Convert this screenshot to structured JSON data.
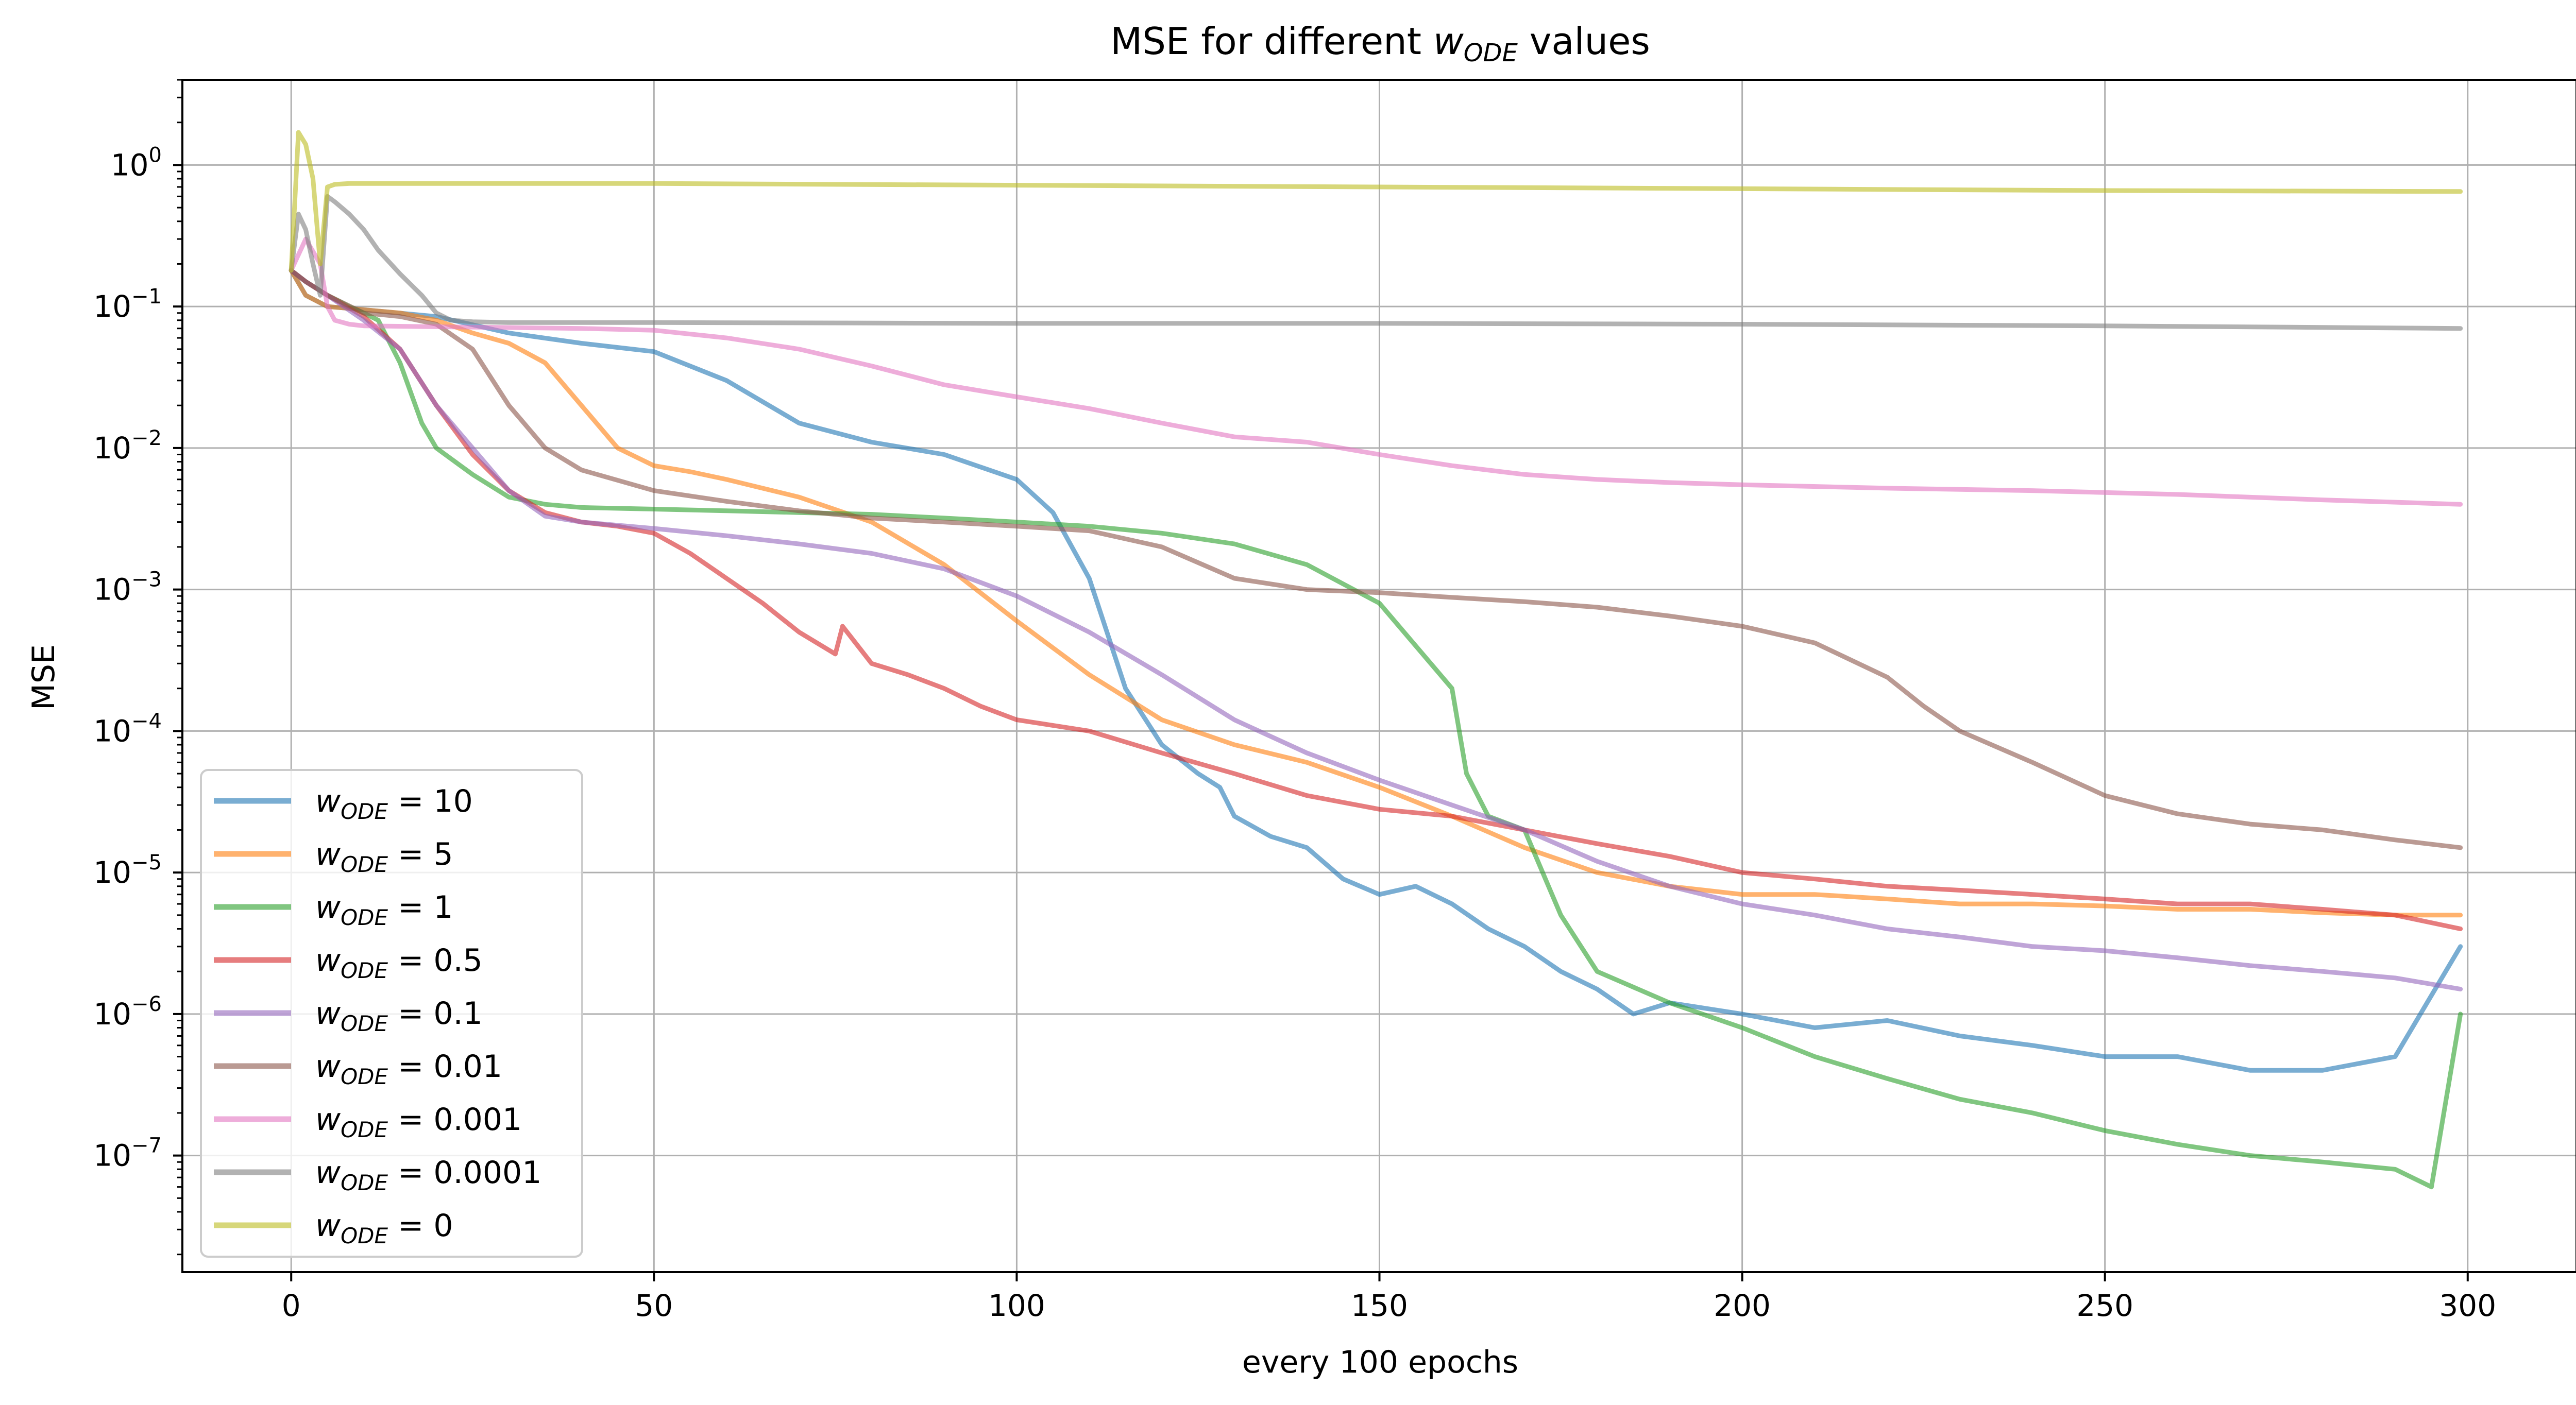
{
  "chart_data": {
    "type": "line",
    "title": "MSE for different w_ODE values",
    "title_parts": {
      "prefix": "MSE for different ",
      "var": "w",
      "sub": "ODE",
      "suffix": " values"
    },
    "xlabel": "every 100 epochs",
    "ylabel": "MSE",
    "xlim": [
      -15,
      315
    ],
    "ylim": [
      1.5e-08,
      4
    ],
    "yscale": "log",
    "grid": true,
    "legend_position": "lower-left",
    "x_ticks": [
      0,
      50,
      100,
      150,
      200,
      250,
      300
    ],
    "x_tick_labels": [
      "0",
      "50",
      "100",
      "150",
      "200",
      "250",
      "300"
    ],
    "y_ticks": [
      1,
      0.1,
      0.01,
      0.001,
      0.0001,
      1e-05,
      1e-06,
      1e-07
    ],
    "y_tick_labels": [
      {
        "base": "10",
        "exp": "0"
      },
      {
        "base": "10",
        "exp": "−1"
      },
      {
        "base": "10",
        "exp": "−2"
      },
      {
        "base": "10",
        "exp": "−3"
      },
      {
        "base": "10",
        "exp": "−4"
      },
      {
        "base": "10",
        "exp": "−5"
      },
      {
        "base": "10",
        "exp": "−6"
      },
      {
        "base": "10",
        "exp": "−7"
      }
    ],
    "series": [
      {
        "name": "w_ODE = 10",
        "legend_value": "10",
        "color": "#1f77b4",
        "x": [
          0,
          2,
          5,
          10,
          20,
          30,
          40,
          50,
          60,
          70,
          80,
          90,
          100,
          105,
          110,
          115,
          120,
          125,
          128,
          130,
          135,
          140,
          145,
          150,
          155,
          160,
          165,
          170,
          175,
          180,
          185,
          190,
          200,
          210,
          220,
          230,
          240,
          250,
          260,
          270,
          280,
          290,
          299
        ],
        "y": [
          0.18,
          0.12,
          0.1,
          0.095,
          0.085,
          0.065,
          0.055,
          0.048,
          0.03,
          0.015,
          0.011,
          0.009,
          0.006,
          0.0035,
          0.0012,
          0.0002,
          8e-05,
          5e-05,
          4e-05,
          2.5e-05,
          1.8e-05,
          1.5e-05,
          9e-06,
          7e-06,
          8e-06,
          6e-06,
          4e-06,
          3e-06,
          2e-06,
          1.5e-06,
          1e-06,
          1.2e-06,
          1e-06,
          8e-07,
          9e-07,
          7e-07,
          6e-07,
          5e-07,
          5e-07,
          4e-07,
          4e-07,
          5e-07,
          3e-06
        ]
      },
      {
        "name": "w_ODE = 5",
        "legend_value": "5",
        "color": "#ff7f0e",
        "x": [
          0,
          2,
          5,
          10,
          15,
          20,
          25,
          30,
          35,
          40,
          45,
          50,
          55,
          60,
          70,
          80,
          90,
          100,
          110,
          120,
          130,
          140,
          150,
          160,
          170,
          180,
          190,
          200,
          210,
          220,
          230,
          240,
          250,
          260,
          270,
          280,
          290,
          299
        ],
        "y": [
          0.18,
          0.12,
          0.1,
          0.095,
          0.09,
          0.08,
          0.065,
          0.055,
          0.04,
          0.02,
          0.01,
          0.0075,
          0.0068,
          0.006,
          0.0045,
          0.003,
          0.0015,
          0.0006,
          0.00025,
          0.00012,
          8e-05,
          6e-05,
          4e-05,
          2.5e-05,
          1.5e-05,
          1e-05,
          8e-06,
          7e-06,
          7e-06,
          6.5e-06,
          6e-06,
          6e-06,
          5.8e-06,
          5.5e-06,
          5.5e-06,
          5.2e-06,
          5e-06,
          5e-06
        ]
      },
      {
        "name": "w_ODE = 1",
        "legend_value": "1",
        "color": "#2ca02c",
        "x": [
          0,
          2,
          5,
          8,
          10,
          12,
          15,
          18,
          20,
          25,
          30,
          35,
          40,
          50,
          60,
          70,
          80,
          90,
          100,
          110,
          120,
          130,
          140,
          150,
          155,
          160,
          162,
          165,
          170,
          175,
          180,
          190,
          200,
          210,
          220,
          230,
          240,
          250,
          260,
          270,
          280,
          290,
          295,
          299
        ],
        "y": [
          0.18,
          0.15,
          0.12,
          0.1,
          0.09,
          0.08,
          0.04,
          0.015,
          0.01,
          0.0065,
          0.0045,
          0.004,
          0.0038,
          0.0037,
          0.0036,
          0.0035,
          0.0034,
          0.0032,
          0.003,
          0.0028,
          0.0025,
          0.0021,
          0.0015,
          0.0008,
          0.0004,
          0.0002,
          5e-05,
          2.5e-05,
          2e-05,
          5e-06,
          2e-06,
          1.2e-06,
          8e-07,
          5e-07,
          3.5e-07,
          2.5e-07,
          2e-07,
          1.5e-07,
          1.2e-07,
          1e-07,
          9e-08,
          8e-08,
          6e-08,
          1e-06
        ]
      },
      {
        "name": "w_ODE = 0.5",
        "legend_value": "0.5",
        "color": "#d62728",
        "x": [
          0,
          2,
          5,
          10,
          15,
          20,
          25,
          30,
          35,
          40,
          45,
          50,
          55,
          60,
          65,
          70,
          75,
          76,
          80,
          85,
          90,
          95,
          100,
          110,
          120,
          130,
          140,
          150,
          160,
          170,
          180,
          190,
          200,
          210,
          220,
          230,
          240,
          250,
          260,
          270,
          280,
          290,
          299
        ],
        "y": [
          0.18,
          0.15,
          0.12,
          0.085,
          0.05,
          0.02,
          0.009,
          0.005,
          0.0035,
          0.003,
          0.0028,
          0.0025,
          0.0018,
          0.0012,
          0.0008,
          0.0005,
          0.00035,
          0.00055,
          0.0003,
          0.00025,
          0.0002,
          0.00015,
          0.00012,
          0.0001,
          7e-05,
          5e-05,
          3.5e-05,
          2.8e-05,
          2.5e-05,
          2e-05,
          1.6e-05,
          1.3e-05,
          1e-05,
          9e-06,
          8e-06,
          7.5e-06,
          7e-06,
          6.5e-06,
          6e-06,
          6e-06,
          5.5e-06,
          5e-06,
          4e-06
        ]
      },
      {
        "name": "w_ODE = 0.1",
        "legend_value": "0.1",
        "color": "#9467bd",
        "x": [
          0,
          2,
          5,
          10,
          15,
          20,
          25,
          30,
          35,
          40,
          50,
          60,
          70,
          80,
          90,
          100,
          110,
          120,
          130,
          140,
          150,
          160,
          170,
          180,
          190,
          200,
          210,
          220,
          230,
          240,
          250,
          260,
          270,
          280,
          290,
          299
        ],
        "y": [
          0.18,
          0.15,
          0.12,
          0.08,
          0.05,
          0.02,
          0.01,
          0.005,
          0.0033,
          0.003,
          0.0027,
          0.0024,
          0.0021,
          0.0018,
          0.0014,
          0.0009,
          0.0005,
          0.00025,
          0.00012,
          7e-05,
          4.5e-05,
          3e-05,
          2e-05,
          1.2e-05,
          8e-06,
          6e-06,
          5e-06,
          4e-06,
          3.5e-06,
          3e-06,
          2.8e-06,
          2.5e-06,
          2.2e-06,
          2e-06,
          1.8e-06,
          1.5e-06
        ]
      },
      {
        "name": "w_ODE = 0.01",
        "legend_value": "0.01",
        "color": "#8c564b",
        "x": [
          0,
          2,
          5,
          10,
          15,
          20,
          25,
          30,
          35,
          40,
          50,
          60,
          70,
          80,
          90,
          100,
          110,
          120,
          130,
          140,
          150,
          160,
          170,
          180,
          190,
          200,
          210,
          220,
          225,
          230,
          240,
          250,
          260,
          270,
          280,
          290,
          299
        ],
        "y": [
          0.18,
          0.15,
          0.12,
          0.09,
          0.085,
          0.075,
          0.05,
          0.02,
          0.01,
          0.007,
          0.005,
          0.0042,
          0.0036,
          0.0032,
          0.003,
          0.0028,
          0.0026,
          0.002,
          0.0012,
          0.001,
          0.00095,
          0.00088,
          0.00082,
          0.00075,
          0.00065,
          0.00055,
          0.00042,
          0.00024,
          0.00015,
          0.0001,
          6e-05,
          3.5e-05,
          2.6e-05,
          2.2e-05,
          2e-05,
          1.7e-05,
          1.5e-05
        ]
      },
      {
        "name": "w_ODE = 0.001",
        "legend_value": "0.001",
        "color": "#e377c2",
        "x": [
          0,
          2,
          4,
          5,
          6,
          8,
          10,
          20,
          30,
          40,
          50,
          60,
          70,
          80,
          90,
          100,
          110,
          120,
          130,
          140,
          150,
          160,
          170,
          180,
          190,
          200,
          220,
          240,
          260,
          280,
          299
        ],
        "y": [
          0.18,
          0.3,
          0.2,
          0.1,
          0.08,
          0.075,
          0.073,
          0.072,
          0.071,
          0.07,
          0.068,
          0.06,
          0.05,
          0.038,
          0.028,
          0.023,
          0.019,
          0.015,
          0.012,
          0.011,
          0.009,
          0.0075,
          0.0065,
          0.006,
          0.0057,
          0.0055,
          0.0052,
          0.005,
          0.0047,
          0.0043,
          0.004
        ]
      },
      {
        "name": "w_ODE = 0.0001",
        "legend_value": "0.0001",
        "color": "#7f7f7f",
        "x": [
          0,
          1,
          2,
          3,
          4,
          5,
          6,
          8,
          10,
          12,
          15,
          18,
          20,
          22,
          25,
          30,
          40,
          50,
          100,
          150,
          200,
          250,
          299
        ],
        "y": [
          0.18,
          0.45,
          0.35,
          0.2,
          0.12,
          0.6,
          0.55,
          0.45,
          0.35,
          0.25,
          0.17,
          0.12,
          0.09,
          0.08,
          0.078,
          0.077,
          0.077,
          0.077,
          0.076,
          0.076,
          0.075,
          0.073,
          0.07
        ]
      },
      {
        "name": "w_ODE = 0",
        "legend_value": "0",
        "color": "#bcbd22",
        "x": [
          0,
          1,
          2,
          3,
          4,
          5,
          6,
          8,
          10,
          20,
          50,
          100,
          150,
          200,
          250,
          299
        ],
        "y": [
          0.18,
          1.7,
          1.4,
          0.8,
          0.2,
          0.7,
          0.73,
          0.74,
          0.74,
          0.74,
          0.74,
          0.72,
          0.7,
          0.68,
          0.66,
          0.65
        ]
      }
    ]
  }
}
